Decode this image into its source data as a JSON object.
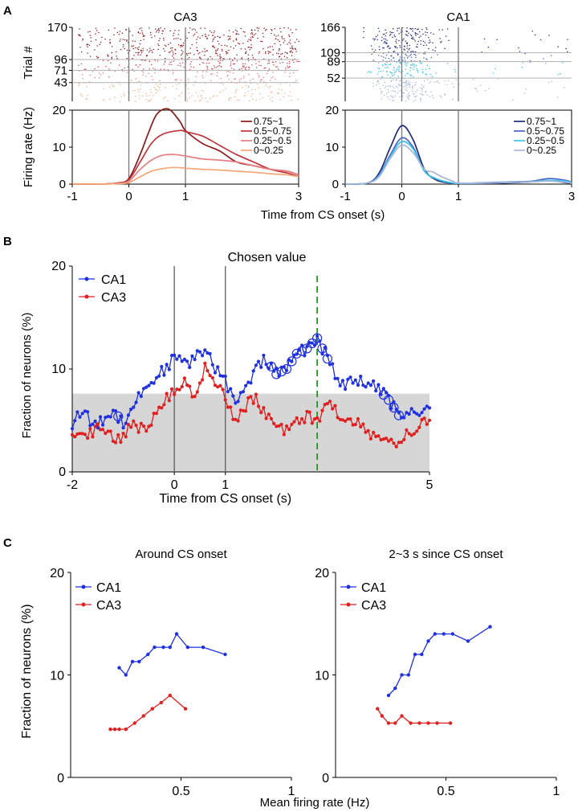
{
  "panel_a": {
    "label": "A",
    "x_axis_label": "Time from CS onset (s)",
    "raster_ylabel": "Trial #",
    "rate_ylabel": "Firing rate (Hz)"
  },
  "panel_b": {
    "label": "B"
  },
  "panel_c": {
    "label": "C",
    "x_axis_label": "Mean firing rate (Hz)",
    "ylabel": "Fraction of neurons (%)"
  },
  "chart_data": [
    {
      "id": "A-CA3-raster",
      "type": "scatter",
      "title": "CA3",
      "ylabel": "Trial #",
      "xlim": [
        -1,
        3
      ],
      "ylim": [
        0,
        170
      ],
      "yticks": [
        43,
        71,
        96,
        170
      ],
      "row_separators": [
        43,
        71,
        96
      ],
      "vlines": [
        0,
        1
      ],
      "groups": [
        {
          "name": "0.75~1",
          "trials": [
            96,
            170
          ],
          "color": "#8b1a1a"
        },
        {
          "name": "0.5~0.75",
          "trials": [
            71,
            96
          ],
          "color": "#c8454c"
        },
        {
          "name": "0.25~0.5",
          "trials": [
            43,
            71
          ],
          "color": "#e87f84"
        },
        {
          "name": "0~0.25",
          "trials": [
            0,
            43
          ],
          "color": "#f4b08e"
        }
      ]
    },
    {
      "id": "A-CA1-raster",
      "type": "scatter",
      "title": "CA1",
      "ylabel": "",
      "xlim": [
        -1,
        3
      ],
      "ylim": [
        0,
        166
      ],
      "yticks": [
        52,
        89,
        109,
        166
      ],
      "row_separators": [
        52,
        89,
        109
      ],
      "vlines": [
        0,
        1
      ],
      "groups": [
        {
          "name": "0.75~1",
          "trials": [
            109,
            166
          ],
          "color": "#1f2a7a"
        },
        {
          "name": "0.5~0.75",
          "trials": [
            89,
            109
          ],
          "color": "#4a63c8"
        },
        {
          "name": "0.25~0.5",
          "trials": [
            52,
            89
          ],
          "color": "#3fc4e6"
        },
        {
          "name": "0~0.25",
          "trials": [
            0,
            52
          ],
          "color": "#a9b6d8"
        }
      ]
    },
    {
      "id": "A-CA3-rate",
      "type": "line",
      "title": "",
      "xlabel": "Time from CS onset (s)",
      "ylabel": "Firing rate (Hz)",
      "xlim": [
        -1,
        3
      ],
      "ylim": [
        0,
        20
      ],
      "xticks": [
        "-1",
        "0",
        "1",
        "3"
      ],
      "yticks": [
        "0",
        "10",
        "20"
      ],
      "vlines": [
        0,
        1
      ],
      "legend_position": "top-right",
      "series": [
        {
          "name": "0.75~1",
          "color": "#8b1a1a",
          "x": [
            -1,
            -0.5,
            -0.2,
            0,
            0.2,
            0.35,
            0.5,
            0.7,
            0.9,
            1.0,
            1.3,
            1.6,
            1.9,
            2.2,
            2.5,
            2.8,
            3
          ],
          "y": [
            0,
            0,
            0.3,
            1.5,
            8,
            14,
            19,
            20.3,
            17,
            14.5,
            11,
            9,
            6,
            5,
            4,
            3.5,
            2.5
          ]
        },
        {
          "name": "0.5~0.75",
          "color": "#c0343c",
          "x": [
            -1,
            -0.5,
            -0.2,
            0,
            0.2,
            0.4,
            0.6,
            0.9,
            1.0,
            1.3,
            1.6,
            1.9,
            2.2,
            2.5,
            2.8,
            3
          ],
          "y": [
            0,
            0,
            0.3,
            1.2,
            6,
            11,
            13.5,
            14.5,
            14.2,
            13,
            10.5,
            8,
            6,
            4,
            3,
            2
          ]
        },
        {
          "name": "0.25~0.5",
          "color": "#e87f84",
          "x": [
            -1,
            -0.5,
            -0.2,
            0,
            0.2,
            0.4,
            0.6,
            0.8,
            1.0,
            1.3,
            1.6,
            1.9,
            2.2,
            2.5,
            2.8,
            3
          ],
          "y": [
            0,
            0,
            0.2,
            0.8,
            4,
            6.5,
            7.8,
            8,
            7.6,
            6.8,
            6.5,
            6,
            5,
            4,
            3.5,
            2.5
          ]
        },
        {
          "name": "0~0.25",
          "color": "#f4a678",
          "x": [
            -1,
            -0.5,
            -0.2,
            0,
            0.2,
            0.4,
            0.6,
            0.8,
            1.0,
            1.3,
            1.6,
            1.9,
            2.2,
            2.5,
            2.8,
            3
          ],
          "y": [
            0,
            0,
            0.1,
            0.4,
            2,
            3.5,
            4.2,
            4.5,
            4.3,
            4,
            3.8,
            3.5,
            3.2,
            2.8,
            2.5,
            2
          ]
        }
      ]
    },
    {
      "id": "A-CA1-rate",
      "type": "line",
      "title": "",
      "xlabel": "",
      "ylabel": "",
      "xlim": [
        -1,
        3
      ],
      "ylim": [
        0,
        20
      ],
      "xticks": [
        "-1",
        "0",
        "1",
        "3"
      ],
      "yticks": [
        "0",
        "10",
        "20"
      ],
      "vlines": [
        0,
        1
      ],
      "legend_position": "top-right",
      "series": [
        {
          "name": "0.75~1",
          "color": "#1f2a7a",
          "x": [
            -1,
            -0.6,
            -0.4,
            -0.2,
            0,
            0.2,
            0.4,
            0.6,
            0.8,
            1.0,
            1.5,
            2.0,
            2.3,
            2.6,
            2.9,
            3
          ],
          "y": [
            0,
            0.3,
            3,
            10,
            15.8,
            12,
            4,
            1.2,
            0.4,
            0.2,
            0.2,
            0.4,
            0.6,
            0.9,
            0.4,
            0.2
          ]
        },
        {
          "name": "0.5~0.75",
          "color": "#4a63c8",
          "x": [
            -1,
            -0.6,
            -0.4,
            -0.2,
            0,
            0.2,
            0.4,
            0.6,
            0.8,
            1.0,
            1.5,
            2.0,
            2.3,
            2.6,
            2.9,
            3
          ],
          "y": [
            0,
            0.3,
            2.5,
            8,
            12.5,
            10,
            3.5,
            1.5,
            0.5,
            0.2,
            0.4,
            0.6,
            0.8,
            1.5,
            1.0,
            0.4
          ]
        },
        {
          "name": "0.25~0.5",
          "color": "#3fc4e6",
          "x": [
            -1,
            -0.6,
            -0.4,
            -0.2,
            0,
            0.2,
            0.4,
            0.6,
            0.8,
            1.0,
            1.5,
            2.0,
            2.3,
            2.6,
            2.9,
            3
          ],
          "y": [
            0,
            0.3,
            2.3,
            7.5,
            11.5,
            9.5,
            3.5,
            1.5,
            0.6,
            0.2,
            0.3,
            0.5,
            0.7,
            1.0,
            0.8,
            0.3
          ]
        },
        {
          "name": "0~0.25",
          "color": "#a9b6d8",
          "x": [
            -1,
            -0.6,
            -0.4,
            -0.2,
            0,
            0.2,
            0.4,
            0.55,
            0.7,
            0.9,
            1.0,
            1.5,
            2.0,
            2.3,
            2.6,
            2.9,
            3
          ],
          "y": [
            0,
            0.3,
            2,
            7,
            10.5,
            8.5,
            4,
            3.3,
            2,
            0.8,
            0.3,
            0.3,
            0.5,
            0.6,
            0.8,
            0.5,
            0.2
          ]
        }
      ]
    },
    {
      "id": "B",
      "type": "line",
      "title": "Chosen value",
      "xlabel": "Time from CS onset (s)",
      "ylabel": "Fraction of neurons (%)",
      "xlim": [
        -2,
        5
      ],
      "ylim": [
        0,
        20
      ],
      "xticks": [
        "-2",
        "0",
        "1",
        "5"
      ],
      "yticks": [
        "0",
        "10",
        "20"
      ],
      "vlines": [
        0,
        1
      ],
      "dashed_vline": 2.8,
      "shaded_band": [
        0,
        7.6
      ],
      "legend_position": "top-left",
      "series": [
        {
          "name": "CA1",
          "color": "#1f30e0",
          "x": [
            -2,
            -1.8,
            -1.6,
            -1.4,
            -1.2,
            -1.0,
            -0.8,
            -0.6,
            -0.4,
            -0.2,
            0,
            0.2,
            0.4,
            0.6,
            0.8,
            1.0,
            1.2,
            1.4,
            1.6,
            1.8,
            2.0,
            2.2,
            2.4,
            2.6,
            2.8,
            3.0,
            3.2,
            3.4,
            3.6,
            3.8,
            4.0,
            4.2,
            4.4,
            4.6,
            4.8,
            5.0
          ],
          "y": [
            4.8,
            6.0,
            4.5,
            5.0,
            6.0,
            4.8,
            6.5,
            8.0,
            9.0,
            10.0,
            11.0,
            10.5,
            11.0,
            11.8,
            10.2,
            9.0,
            6.5,
            8.0,
            10.0,
            11.0,
            9.5,
            10.0,
            11.5,
            12.0,
            13.0,
            11.0,
            9.0,
            8.5,
            9.0,
            8.5,
            8.0,
            7.0,
            5.5,
            6.0,
            5.8,
            6.2
          ],
          "circled_x": [
            -1.1,
            1.9,
            2.0,
            2.1,
            2.2,
            2.3,
            2.4,
            2.5,
            2.6,
            2.7,
            2.8,
            2.9,
            3.0,
            4.1,
            4.2,
            4.3,
            4.4
          ]
        },
        {
          "name": "CA3",
          "color": "#e02020",
          "x": [
            -2,
            -1.8,
            -1.6,
            -1.4,
            -1.2,
            -1.0,
            -0.8,
            -0.6,
            -0.4,
            -0.2,
            0,
            0.2,
            0.4,
            0.6,
            0.8,
            1.0,
            1.2,
            1.4,
            1.6,
            1.8,
            2.0,
            2.2,
            2.4,
            2.6,
            2.8,
            3.0,
            3.2,
            3.4,
            3.6,
            3.8,
            4.0,
            4.2,
            4.4,
            4.6,
            4.8,
            5.0
          ],
          "y": [
            4.2,
            3.5,
            4.0,
            4.5,
            3.0,
            3.5,
            4.8,
            4.0,
            5.5,
            7.0,
            8.0,
            9.0,
            7.5,
            10.0,
            9.0,
            7.5,
            5.0,
            6.5,
            7.2,
            5.5,
            4.5,
            4.0,
            5.0,
            5.5,
            5.0,
            7.0,
            5.5,
            5.0,
            4.8,
            3.8,
            3.5,
            2.5,
            3.0,
            3.8,
            4.5,
            5.0
          ]
        }
      ]
    },
    {
      "id": "C-left",
      "type": "line",
      "title": "Around CS onset",
      "xlabel": "",
      "ylabel": "Fraction of neurons (%)",
      "xlim": [
        0,
        1
      ],
      "ylim": [
        0,
        20
      ],
      "xticks": [
        "0.5",
        "1"
      ],
      "yticks": [
        "0",
        "10",
        "20"
      ],
      "legend_position": "top-left",
      "series": [
        {
          "name": "CA1",
          "color": "#1f30e0",
          "x": [
            0.22,
            0.25,
            0.28,
            0.31,
            0.35,
            0.38,
            0.42,
            0.45,
            0.48,
            0.53,
            0.6,
            0.7
          ],
          "y": [
            10.7,
            10.0,
            11.3,
            11.3,
            12.0,
            12.7,
            12.7,
            12.7,
            14.0,
            12.7,
            12.7,
            12.0
          ]
        },
        {
          "name": "CA3",
          "color": "#e02020",
          "x": [
            0.18,
            0.2,
            0.22,
            0.25,
            0.29,
            0.33,
            0.37,
            0.41,
            0.45,
            0.52
          ],
          "y": [
            4.7,
            4.7,
            4.7,
            4.7,
            5.3,
            6.0,
            6.7,
            7.3,
            8.0,
            6.7
          ]
        }
      ]
    },
    {
      "id": "C-right",
      "type": "line",
      "title": "2~3 s since CS onset",
      "xlabel": "",
      "ylabel": "",
      "xlim": [
        0,
        1
      ],
      "ylim": [
        0,
        20
      ],
      "xticks": [
        "0.5",
        "1"
      ],
      "yticks": [
        "0",
        "10",
        "20"
      ],
      "legend_position": "top-left",
      "series": [
        {
          "name": "CA1",
          "color": "#1f30e0",
          "x": [
            0.24,
            0.27,
            0.3,
            0.33,
            0.36,
            0.39,
            0.42,
            0.45,
            0.49,
            0.53,
            0.6,
            0.7
          ],
          "y": [
            8.0,
            8.7,
            10.0,
            10.0,
            12.0,
            12.0,
            13.3,
            14.0,
            14.0,
            14.0,
            13.3,
            14.7
          ]
        },
        {
          "name": "CA3",
          "color": "#e02020",
          "x": [
            0.19,
            0.21,
            0.24,
            0.27,
            0.3,
            0.34,
            0.38,
            0.42,
            0.46,
            0.52
          ],
          "y": [
            6.7,
            6.0,
            5.3,
            5.3,
            6.0,
            5.3,
            5.3,
            5.3,
            5.3,
            5.3
          ]
        }
      ]
    }
  ]
}
